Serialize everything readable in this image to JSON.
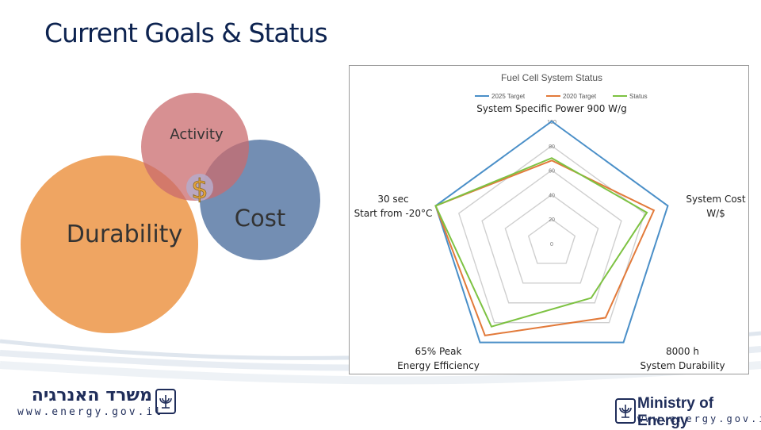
{
  "slide": {
    "title": "Current Goals & Status"
  },
  "venn": {
    "activity": "Activity",
    "durability": "Durability",
    "cost": "Cost",
    "dollar": "$"
  },
  "colors": {
    "title": "#0d2350",
    "durability_circle": "#ee9d55",
    "activity_circle": "#d27a78",
    "cost_circle": "#5b7aa6",
    "target_2025": "#4a8fc8",
    "target_2020": "#e27a3a",
    "status": "#7dc242"
  },
  "footer": {
    "hebrew_name": "משרד האנרגיה",
    "url_left": "www.energy.gov.il",
    "ministry_name": "Ministry of Energy",
    "url_right": "www.energy.gov.il",
    "emblem_icon": "menorah-emblem-icon"
  },
  "chart_data": {
    "type": "radar",
    "title": "Fuel Cell System Status",
    "legend_position": "top",
    "rlim": [
      0,
      100
    ],
    "ticks": [
      0,
      20,
      40,
      60,
      80,
      100
    ],
    "axes": [
      [
        "System Specific Power 900 W/g"
      ],
      [
        "System Cost",
        "W/$"
      ],
      [
        "8000 h",
        "System Durability"
      ],
      [
        "65%  Peak",
        "Energy Efficiency"
      ],
      [
        "30 sec",
        "Start from -20°C"
      ]
    ],
    "series": [
      {
        "name": "2025 Target",
        "values": [
          100,
          100,
          100,
          100,
          100
        ]
      },
      {
        "name": "2020 Target",
        "values": [
          68,
          88,
          75,
          93,
          100
        ]
      },
      {
        "name": "Status",
        "values": [
          70,
          82,
          55,
          84,
          100
        ]
      }
    ]
  }
}
